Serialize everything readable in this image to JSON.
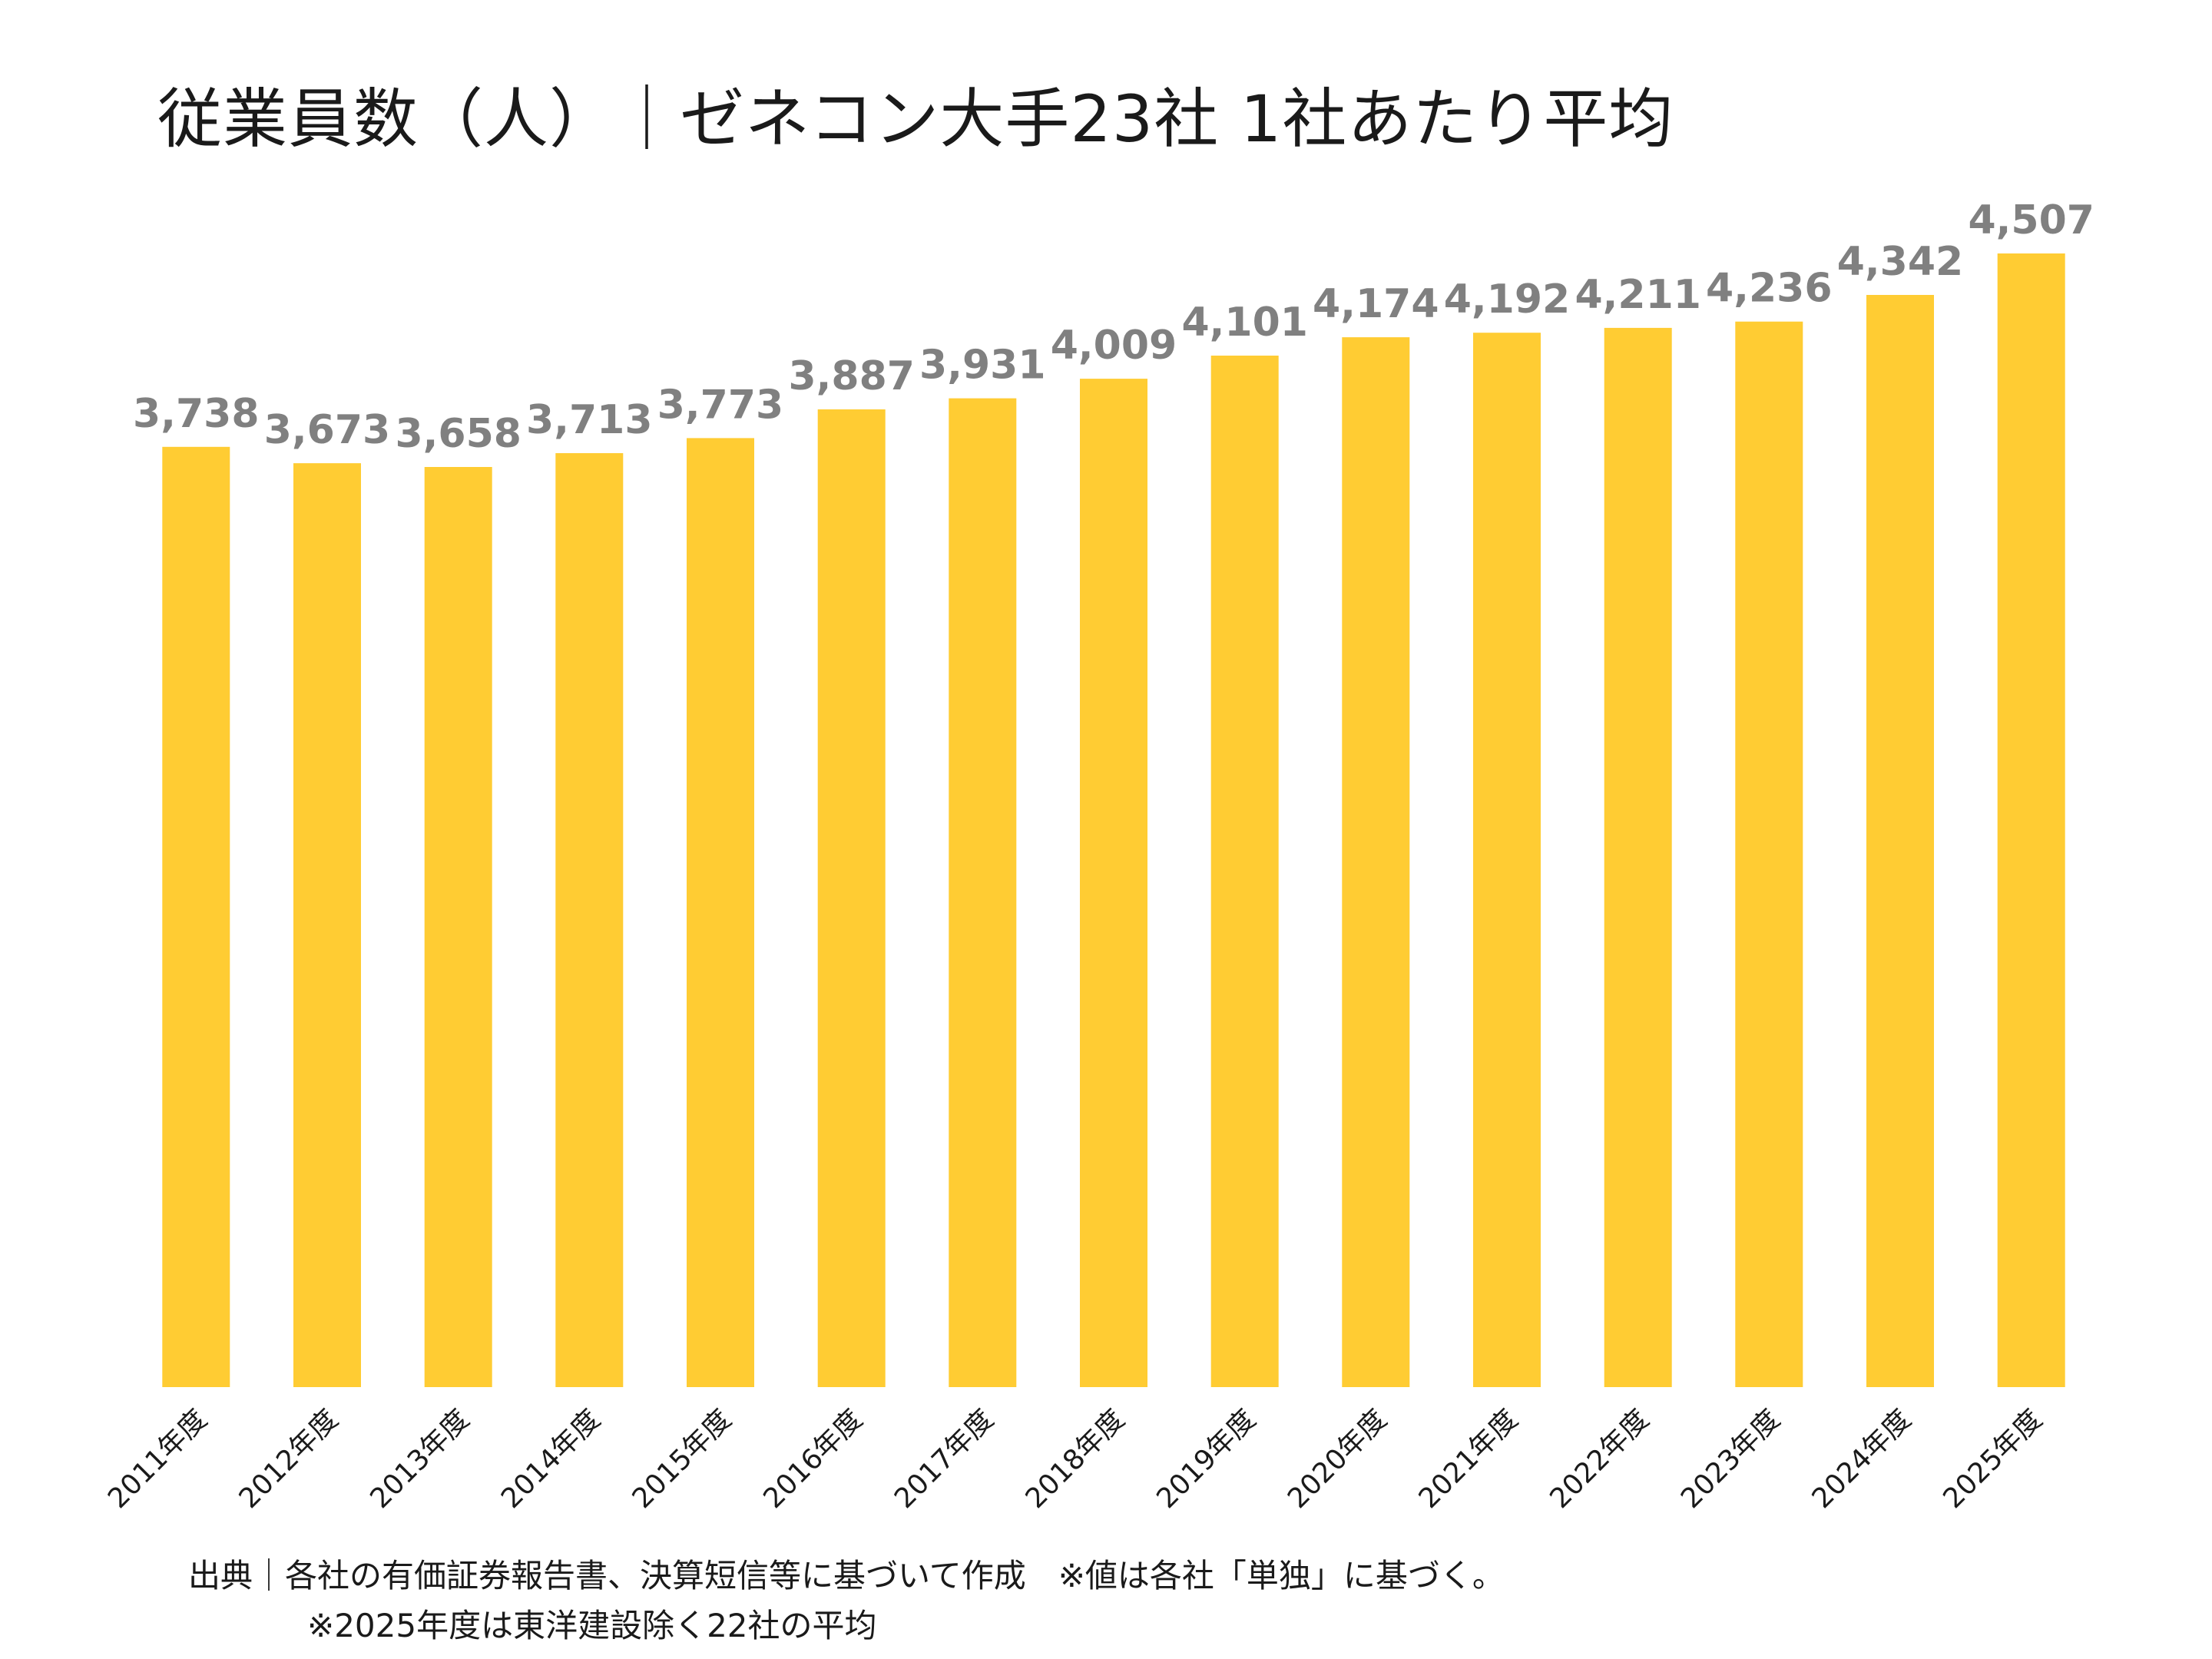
{
  "chart_data": {
    "type": "bar",
    "title": "従業員数（人）｜ゼネコン大手23社 1社あたり平均",
    "categories": [
      "2011年度",
      "2012年度",
      "2013年度",
      "2014年度",
      "2015年度",
      "2016年度",
      "2017年度",
      "2018年度",
      "2019年度",
      "2020年度",
      "2021年度",
      "2022年度",
      "2023年度",
      "2024年度",
      "2025年度"
    ],
    "values": [
      3738,
      3673,
      3658,
      3713,
      3773,
      3887,
      3931,
      4009,
      4101,
      4174,
      4192,
      4211,
      4236,
      4342,
      4507
    ],
    "data_labels": [
      "3,738",
      "3,673",
      "3,658",
      "3,713",
      "3,773",
      "3,887",
      "3,931",
      "4,009",
      "4,101",
      "4,174",
      "4,192",
      "4,211",
      "4,236",
      "4,342",
      "4,507"
    ],
    "xlabel": "",
    "ylabel": "",
    "ylim": [
      0,
      5300
    ],
    "grid": false,
    "legend": "none",
    "bar_color": "#FFCC33",
    "label_color": "#808080"
  },
  "notes": {
    "source": "出典｜各社の有価証券報告書、決算短信等に基づいて作成　※値は各社「単独」に基づく。",
    "footnote": "※2025年度は東洋建設除く22社の平均"
  }
}
